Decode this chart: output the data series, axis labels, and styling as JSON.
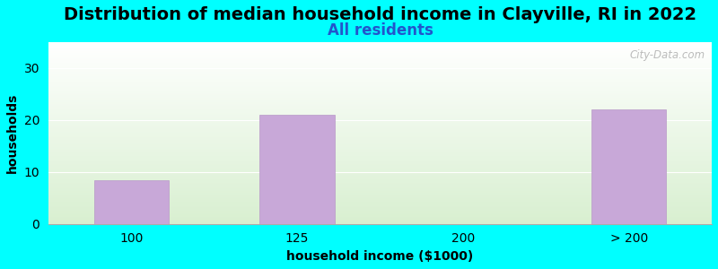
{
  "title": "Distribution of median household income in Clayville, RI in 2022",
  "subtitle": "All residents",
  "xlabel": "household income ($1000)",
  "ylabel": "households",
  "categories": [
    "100",
    "125",
    "200",
    "> 200"
  ],
  "values": [
    8.5,
    21,
    0,
    22
  ],
  "bar_color": "#c8a8d8",
  "bar_edge_color": "#b898c8",
  "background_color": "#00ffff",
  "plot_bg_top": "#ffffff",
  "plot_bg_bottom": "#d8efd0",
  "ylim": [
    0,
    35
  ],
  "yticks": [
    0,
    10,
    20,
    30
  ],
  "title_fontsize": 14,
  "subtitle_fontsize": 12,
  "label_fontsize": 10,
  "tick_fontsize": 10,
  "watermark": "City-Data.com",
  "bar_width": 0.45
}
